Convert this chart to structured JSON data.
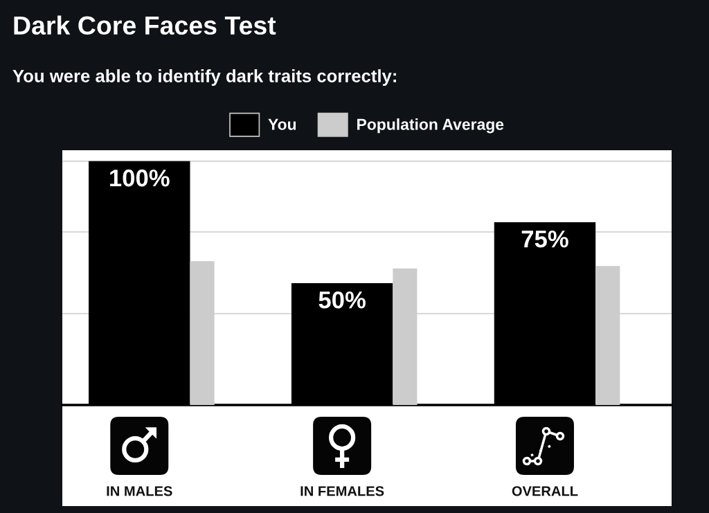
{
  "chart_data": {
    "type": "bar",
    "title": "Dark Core Faces Test",
    "subtitle": "You were able to identify dark traits correctly:",
    "categories": [
      "IN MALES",
      "IN FEMALES",
      "OVERALL"
    ],
    "series": [
      {
        "name": "You",
        "color": "#000000",
        "values": [
          100,
          50,
          75
        ],
        "value_labels": [
          "100%",
          "50%",
          "75%"
        ]
      },
      {
        "name": "Population Average",
        "color": "#cccccc",
        "values": [
          59,
          56,
          57
        ]
      }
    ],
    "ylim": [
      0,
      104.5
    ],
    "yticks": [
      {
        "value": 37.5,
        "label": null
      },
      {
        "value": 71,
        "label": null
      },
      {
        "value": 100,
        "label": null
      }
    ],
    "grid": "y",
    "legend": "top",
    "tick_labels": "x"
  }
}
